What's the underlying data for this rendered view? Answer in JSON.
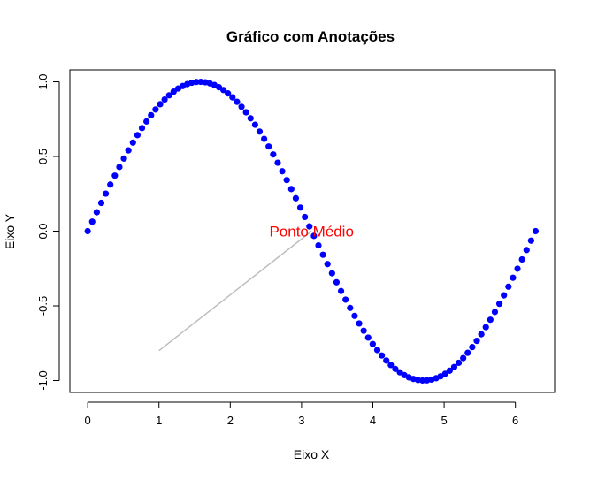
{
  "chart_data": {
    "type": "scatter",
    "title": "Gráfico com Anotações",
    "xlabel": "Eixo X",
    "ylabel": "Eixo Y",
    "xlim": [
      -0.25,
      6.55
    ],
    "ylim": [
      -1.08,
      1.08
    ],
    "x_ticks": [
      0,
      1,
      2,
      3,
      4,
      5,
      6
    ],
    "x_tick_labels": [
      "0",
      "1",
      "2",
      "3",
      "4",
      "5",
      "6"
    ],
    "y_ticks": [
      -1.0,
      -0.5,
      0.0,
      0.5,
      1.0
    ],
    "y_tick_labels": [
      "-1.0",
      "-0.5",
      "0.0",
      "0.5",
      "1.0"
    ],
    "grid": false,
    "series": [
      {
        "function": "sin(x)",
        "x_from": 0,
        "x_to": 6.2832,
        "n_points": 100,
        "color": "#0000ff",
        "marker": "filled-circle"
      }
    ],
    "annotations": [
      {
        "type": "text",
        "text": "Ponto Médio",
        "x": 3.14,
        "y": 0.0,
        "color": "#ff0000"
      },
      {
        "type": "segment",
        "x0": 1.0,
        "y0": -0.8,
        "x1": 3.14,
        "y1": 0.0,
        "color": "#bebebe"
      }
    ]
  }
}
